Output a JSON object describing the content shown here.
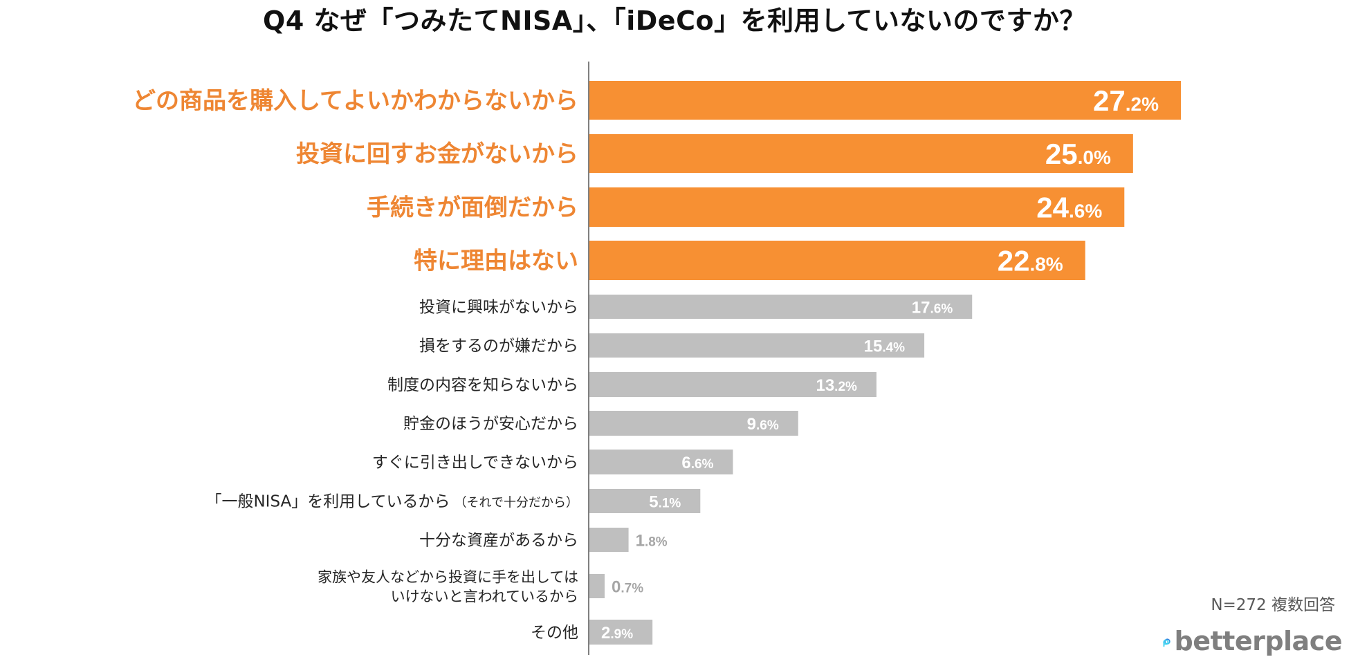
{
  "title": "Q4 なぜ「つみたてNISA」、「iDeCo」を利用していないのですか？",
  "footnote": "N=272 複数回答",
  "logo": {
    "text": "betterplace",
    "icon": "betterplace-logo-icon"
  },
  "colors": {
    "highlight_bar": "#F79033",
    "highlight_label": "#EE8633",
    "normal_bar": "#BFBFBF",
    "normal_label": "#262626",
    "value_inside": "#FFFFFF",
    "value_outside": "#A6A6A6",
    "axis": "#808080",
    "logo_text": "#7F7F7F",
    "logo_icon_top": "#2F7CE0",
    "logo_icon_bottom": "#3CD0F0"
  },
  "chart_data": {
    "type": "bar",
    "orientation": "horizontal",
    "title": "Q4 なぜ「つみたてNISA」、「iDeCo」を利用していないのですか？",
    "xlabel": "",
    "ylabel": "",
    "unit": "%",
    "xlim": [
      0,
      27.2
    ],
    "grid": false,
    "legend": "none",
    "categories": [
      "どの商品を購入してよいかわからないから",
      "投資に回すお金がないから",
      "手続きが面倒だから",
      "特に理由はない",
      "投資に興味がないから",
      "損をするのが嫌だから",
      "制度の内容を知らないから",
      "貯金のほうが安心だから",
      "すぐに引き出しできないから",
      "「一般NISA」を利用しているから",
      "十分な資産があるから",
      "家族や友人などから投資に手を出しては",
      "その他"
    ],
    "label_suffixes": [
      "",
      "",
      "",
      "",
      "",
      "",
      "",
      "",
      "",
      "（それで十分だから）",
      "",
      "いけないと言われているから",
      ""
    ],
    "values": [
      27.2,
      25.0,
      24.6,
      22.8,
      17.6,
      15.4,
      13.2,
      9.6,
      6.6,
      5.1,
      1.8,
      0.7,
      2.9
    ],
    "value_int_parts": [
      "27",
      "25",
      "24",
      "22",
      "17",
      "15",
      "13",
      "9",
      "6",
      "5",
      "1",
      "0",
      "2"
    ],
    "value_dec_parts": [
      ".2%",
      ".0%",
      ".6%",
      ".8%",
      ".6%",
      ".4%",
      ".2%",
      ".6%",
      ".6%",
      ".1%",
      ".8%",
      ".7%",
      ".9%"
    ],
    "highlighted": [
      true,
      true,
      true,
      true,
      false,
      false,
      false,
      false,
      false,
      false,
      false,
      false,
      false
    ],
    "n": 272
  }
}
